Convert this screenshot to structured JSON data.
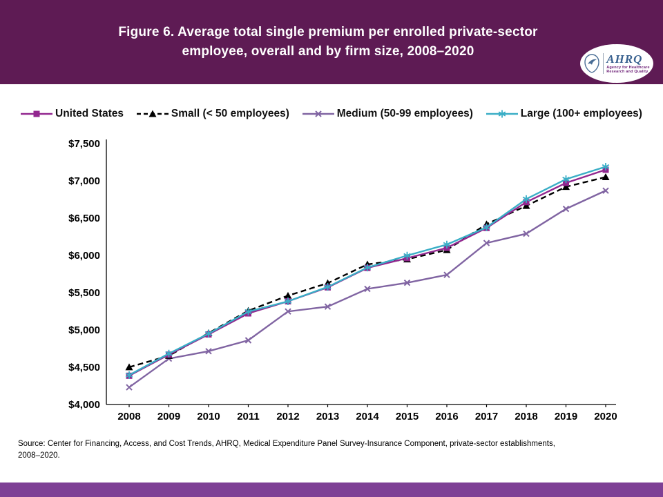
{
  "header": {
    "title_line1": "Figure 6. Average total single premium per enrolled private-sector",
    "title_line2": "employee, overall and by firm size, 2008–2020",
    "banner_color": "#5e1b54",
    "logo": {
      "acronym": "AHRQ",
      "tagline1": "Agency for Healthcare",
      "tagline2": "Research and Quality"
    }
  },
  "chart_data": {
    "type": "line",
    "title": "Figure 6. Average total single premium per enrolled private-sector employee, overall and by firm size, 2008–2020",
    "x": [
      2008,
      2009,
      2010,
      2011,
      2012,
      2013,
      2014,
      2015,
      2016,
      2017,
      2018,
      2019,
      2020
    ],
    "series": [
      {
        "name": "United States",
        "color": "#92278f",
        "marker": "square",
        "dash": "solid",
        "values": [
          4386,
          4669,
          4940,
          5222,
          5384,
          5571,
          5832,
          5963,
          6101,
          6368,
          6715,
          6972,
          7149
        ]
      },
      {
        "name": "Small (< 50 employees)",
        "color": "#000000",
        "marker": "triangle",
        "dash": "dashed",
        "values": [
          4501,
          4654,
          4958,
          5258,
          5460,
          5628,
          5880,
          5948,
          6073,
          6419,
          6665,
          6920,
          7051
        ]
      },
      {
        "name": "Medium (50-99 employees)",
        "color": "#8064a2",
        "marker": "x",
        "dash": "solid",
        "values": [
          4231,
          4615,
          4715,
          4861,
          5248,
          5313,
          5551,
          5633,
          5739,
          6166,
          6291,
          6624,
          6869
        ]
      },
      {
        "name": "Large (100+ employees)",
        "color": "#3aaec6",
        "marker": "asterisk",
        "dash": "solid",
        "values": [
          4394,
          4683,
          4951,
          5246,
          5384,
          5577,
          5837,
          5998,
          6146,
          6376,
          6756,
          7022,
          7190
        ]
      }
    ],
    "xlabel": "",
    "ylabel": "",
    "ylim": [
      4000,
      7500
    ],
    "ytick_step": 500,
    "ytick_labels": [
      "$4,000",
      "$4,500",
      "$5,000",
      "$5,500",
      "$6,000",
      "$6,500",
      "$7,000",
      "$7,500"
    ],
    "legend_position": "top",
    "grid": false
  },
  "footer": {
    "source_line1": "Source: Center for Financing, Access, and Cost Trends, AHRQ, Medical Expenditure Panel Survey-Insurance Component, private-sector establishments,",
    "source_line2": "2008–2020.",
    "bar_color": "#7e4095"
  }
}
